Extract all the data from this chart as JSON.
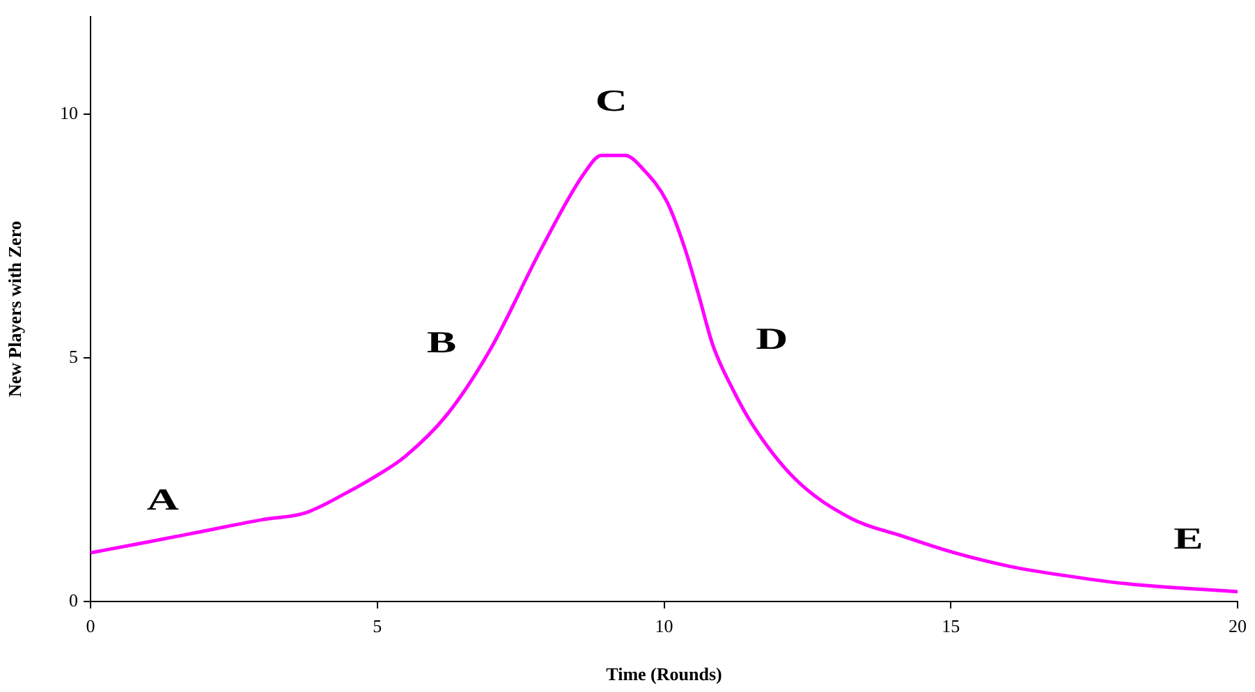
{
  "chart_data": {
    "type": "line",
    "xlabel": "Time (Rounds)",
    "ylabel": "New Players with Zero",
    "series": [
      {
        "color": "#ff00ff",
        "x": [
          0,
          1,
          2,
          3,
          3.75,
          4.48,
          4.96,
          5.49,
          6.22,
          6.97,
          7.87,
          8.6,
          8.91,
          9.32,
          9.64,
          10.05,
          10.36,
          10.6,
          10.85,
          11.19,
          11.55,
          12.28,
          13.27,
          14.16,
          15.06,
          16.03,
          17,
          18.1,
          20
        ],
        "values": [
          1.0,
          1.22,
          1.45,
          1.68,
          1.82,
          2.24,
          2.56,
          2.98,
          3.84,
          5.17,
          7.26,
          8.77,
          9.15,
          9.15,
          8.86,
          8.2,
          7.25,
          6.3,
          5.26,
          4.37,
          3.61,
          2.52,
          1.7,
          1.34,
          1.0,
          0.72,
          0.53,
          0.36,
          0.2
        ]
      }
    ],
    "xlim": [
      0,
      20
    ],
    "xticks": [
      0,
      5,
      10,
      15,
      20
    ],
    "ylim": [
      0,
      12
    ],
    "yticks": [
      0,
      5,
      10
    ],
    "grid": false,
    "legend": false,
    "marker": "none",
    "line_style": "solid",
    "annotations": [
      "A",
      "B",
      "C",
      "D",
      "E"
    ]
  }
}
